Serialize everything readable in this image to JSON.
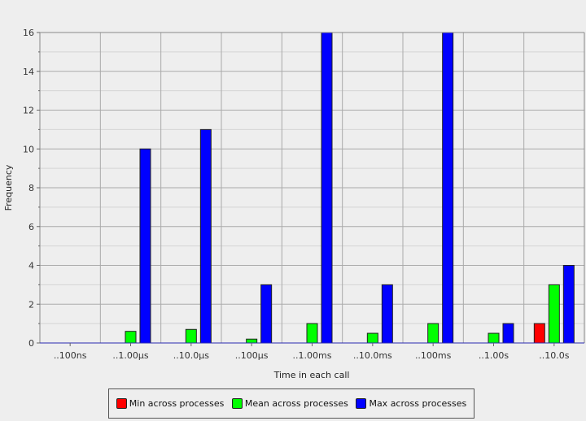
{
  "chart_data": {
    "type": "bar",
    "title": "",
    "xlabel": "Time in each call",
    "ylabel": "Frequency",
    "categories": [
      "..100ns",
      "..1.00µs",
      "..10.0µs",
      "..100µs",
      "..1.00ms",
      "..10.0ms",
      "..100ms",
      "..1.00s",
      "..10.0s"
    ],
    "ylim": [
      0,
      16
    ],
    "yticks": [
      "0",
      "2",
      "4",
      "6",
      "8",
      "10",
      "12",
      "14",
      "16"
    ],
    "grid": true,
    "legend_position": "bottom",
    "series": [
      {
        "name": "Min across processes",
        "color": "#ff0000",
        "values": [
          0,
          0,
          0,
          0,
          0,
          0,
          0,
          0,
          1
        ]
      },
      {
        "name": "Mean across processes",
        "color": "#00ff00",
        "values": [
          0,
          0.6,
          0.7,
          0.2,
          1,
          0.5,
          1,
          0.5,
          3
        ]
      },
      {
        "name": "Max across processes",
        "color": "#0000ff",
        "values": [
          0,
          10,
          11,
          3,
          16,
          3,
          16,
          1,
          4
        ]
      }
    ]
  }
}
